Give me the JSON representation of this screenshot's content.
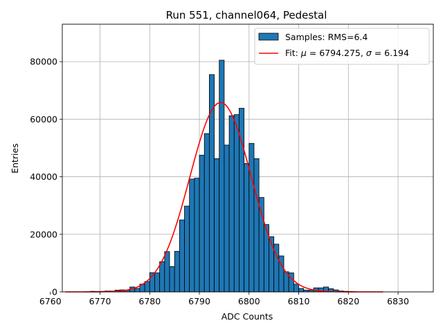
{
  "chart_data": {
    "type": "bar",
    "title": "Run 551, channel064, Pedestal",
    "xlabel": "ADC Counts",
    "ylabel": "Entries",
    "xlim": [
      6762.4,
      6837.1
    ],
    "ylim": [
      0,
      93000
    ],
    "grid": true,
    "legend_position": "top-right",
    "xticks": [
      6760,
      6770,
      6780,
      6790,
      6800,
      6810,
      6820,
      6830
    ],
    "yticks": [
      0,
      20000,
      40000,
      60000,
      80000
    ],
    "series": [
      {
        "name": "Samples: RMS=6.4",
        "kind": "histogram",
        "color": "#1f77b4",
        "edge_color": "#000000",
        "bins": [
          {
            "x": 6768,
            "y": 200
          },
          {
            "x": 6769,
            "y": 150
          },
          {
            "x": 6770,
            "y": 200
          },
          {
            "x": 6771,
            "y": 300
          },
          {
            "x": 6772,
            "y": 300
          },
          {
            "x": 6773,
            "y": 600
          },
          {
            "x": 6774,
            "y": 700
          },
          {
            "x": 6775,
            "y": 600
          },
          {
            "x": 6776,
            "y": 1700
          },
          {
            "x": 6777,
            "y": 1200
          },
          {
            "x": 6778,
            "y": 2700
          },
          {
            "x": 6779,
            "y": 3600
          },
          {
            "x": 6780,
            "y": 6700
          },
          {
            "x": 6781,
            "y": 6600
          },
          {
            "x": 6782,
            "y": 10500
          },
          {
            "x": 6783,
            "y": 14000
          },
          {
            "x": 6784,
            "y": 8800
          },
          {
            "x": 6785,
            "y": 14100
          },
          {
            "x": 6786,
            "y": 25000
          },
          {
            "x": 6787,
            "y": 29800
          },
          {
            "x": 6788,
            "y": 39200
          },
          {
            "x": 6789,
            "y": 39500
          },
          {
            "x": 6790,
            "y": 47500
          },
          {
            "x": 6791,
            "y": 55000
          },
          {
            "x": 6792,
            "y": 75500
          },
          {
            "x": 6793,
            "y": 46300
          },
          {
            "x": 6794,
            "y": 80500
          },
          {
            "x": 6795,
            "y": 51000
          },
          {
            "x": 6796,
            "y": 61200
          },
          {
            "x": 6797,
            "y": 61600
          },
          {
            "x": 6798,
            "y": 63800
          },
          {
            "x": 6799,
            "y": 44600
          },
          {
            "x": 6800,
            "y": 51600
          },
          {
            "x": 6801,
            "y": 46300
          },
          {
            "x": 6802,
            "y": 32800
          },
          {
            "x": 6803,
            "y": 23400
          },
          {
            "x": 6804,
            "y": 19200
          },
          {
            "x": 6805,
            "y": 16600
          },
          {
            "x": 6806,
            "y": 12500
          },
          {
            "x": 6807,
            "y": 7000
          },
          {
            "x": 6808,
            "y": 6600
          },
          {
            "x": 6809,
            "y": 2700
          },
          {
            "x": 6810,
            "y": 1200
          },
          {
            "x": 6811,
            "y": 600
          },
          {
            "x": 6812,
            "y": 600
          },
          {
            "x": 6813,
            "y": 1400
          },
          {
            "x": 6814,
            "y": 1400
          },
          {
            "x": 6815,
            "y": 1700
          },
          {
            "x": 6816,
            "y": 1100
          },
          {
            "x": 6817,
            "y": 700
          },
          {
            "x": 6818,
            "y": 300
          },
          {
            "x": 6819,
            "y": 200
          },
          {
            "x": 6820,
            "y": 150
          }
        ]
      },
      {
        "name": "Fit: $\\mu$ = 6794.275, $\\sigma$ = 6.194",
        "kind": "gaussian",
        "color": "#ff0000",
        "x_range": [
          6763,
          6827
        ],
        "mu": 6794.275,
        "sigma": 6.194,
        "amplitude": 65800
      }
    ]
  }
}
